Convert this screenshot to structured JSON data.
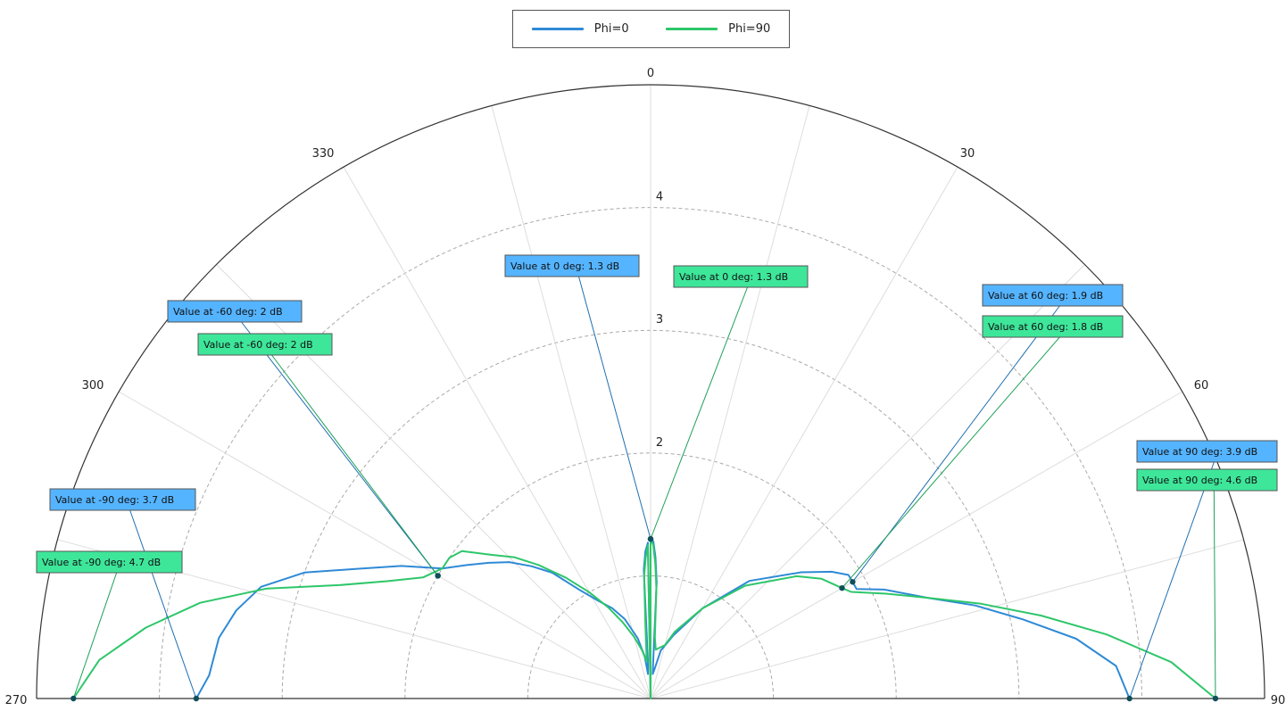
{
  "chart_data": {
    "type": "polar-line",
    "angular_axis": {
      "range_deg": [
        270,
        90
      ],
      "ticks": [
        "270",
        "300",
        "330",
        "0",
        "30",
        "60",
        "90"
      ]
    },
    "radial_axis": {
      "range": [
        0,
        5
      ],
      "ticks": [
        1,
        2,
        3,
        4
      ],
      "tick_labels": [
        "",
        "2",
        "3",
        "4"
      ]
    },
    "grid": true,
    "legend": {
      "placement": "top-center"
    },
    "series": [
      {
        "name": "Phi=0",
        "color": "#2f8ad6",
        "angles": [
          -90,
          -87,
          -82,
          -78,
          -74,
          -70,
          -66,
          -62,
          -58,
          -54,
          -50,
          -46,
          -42,
          -38,
          -33,
          -28,
          -23,
          -18,
          -12,
          -8,
          -6,
          -4,
          -3,
          -2,
          -1,
          0,
          1,
          2,
          3,
          4,
          5,
          8,
          12,
          20,
          30,
          40,
          50,
          55,
          58,
          60,
          62,
          65,
          70,
          74,
          78,
          82,
          86,
          90
        ],
        "values": [
          3.7,
          3.6,
          3.55,
          3.45,
          3.3,
          3.0,
          2.6,
          2.3,
          2.0,
          1.85,
          1.72,
          1.6,
          1.45,
          1.3,
          1.05,
          0.9,
          0.8,
          0.68,
          0.5,
          0.35,
          0.2,
          0.32,
          1.05,
          1.2,
          1.27,
          1.3,
          1.28,
          1.15,
          0.95,
          0.3,
          0.2,
          0.25,
          0.4,
          0.55,
          0.85,
          1.25,
          1.6,
          1.8,
          1.9,
          1.9,
          1.9,
          2.1,
          2.4,
          2.75,
          3.1,
          3.5,
          3.8,
          3.9
        ]
      },
      {
        "name": "Phi=90",
        "color": "#2ec66a",
        "angles": [
          -90,
          -86,
          -82,
          -78,
          -74,
          -70,
          -66,
          -62,
          -58,
          -55,
          -52,
          -48,
          -44,
          -40,
          -35,
          -30,
          -25,
          -20,
          -15,
          -10,
          -6,
          -4,
          -3,
          -2,
          -1,
          0,
          1,
          2,
          3,
          4,
          6,
          10,
          15,
          20,
          30,
          40,
          50,
          55,
          60,
          62,
          66,
          70,
          74,
          78,
          82,
          86,
          90
        ],
        "values": [
          4.7,
          4.5,
          4.15,
          3.75,
          3.25,
          2.7,
          2.35,
          2.1,
          2.0,
          2.0,
          1.95,
          1.75,
          1.6,
          1.42,
          1.2,
          1.0,
          0.82,
          0.66,
          0.52,
          0.4,
          0.3,
          0.6,
          1.0,
          1.15,
          1.25,
          1.3,
          1.25,
          1.1,
          0.9,
          0.5,
          0.4,
          0.42,
          0.45,
          0.58,
          0.85,
          1.2,
          1.55,
          1.7,
          1.8,
          1.85,
          2.1,
          2.4,
          2.8,
          3.25,
          3.75,
          4.25,
          4.6
        ]
      }
    ],
    "annotations": [
      {
        "series": "Phi=0",
        "angle": -90,
        "value": 3.7,
        "text": "Value at -90 deg: 3.7 dB"
      },
      {
        "series": "Phi=90",
        "angle": -90,
        "value": 4.7,
        "text": "Value at -90 deg: 4.7 dB"
      },
      {
        "series": "Phi=0",
        "angle": -60,
        "value": 2,
        "text": "Value at -60 deg: 2 dB"
      },
      {
        "series": "Phi=90",
        "angle": -60,
        "value": 2,
        "text": "Value at -60 deg: 2 dB"
      },
      {
        "series": "Phi=0",
        "angle": 0,
        "value": 1.3,
        "text": "Value at 0 deg: 1.3 dB"
      },
      {
        "series": "Phi=90",
        "angle": 0,
        "value": 1.3,
        "text": "Value at 0 deg: 1.3 dB"
      },
      {
        "series": "Phi=0",
        "angle": 60,
        "value": 1.9,
        "text": "Value at 60 deg: 1.9 dB"
      },
      {
        "series": "Phi=90",
        "angle": 60,
        "value": 1.8,
        "text": "Value at 60 deg: 1.8 dB"
      },
      {
        "series": "Phi=0",
        "angle": 90,
        "value": 3.9,
        "text": "Value at 90 deg: 3.9 dB"
      },
      {
        "series": "Phi=90",
        "angle": 90,
        "value": 4.6,
        "text": "Value at 90 deg: 4.6 dB"
      }
    ],
    "annotation_colors": {
      "Phi=0": "#55b4ff",
      "Phi=90": "#3ee69a"
    }
  }
}
